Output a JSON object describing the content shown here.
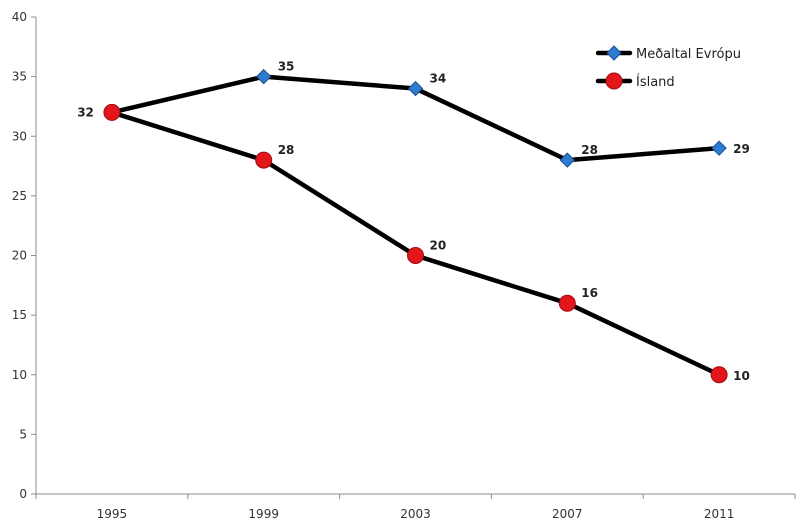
{
  "chart_data": {
    "type": "line",
    "categories": [
      "1995",
      "1999",
      "2003",
      "2007",
      "2011"
    ],
    "ylim": [
      0,
      40
    ],
    "yticks": [
      0,
      5,
      10,
      15,
      20,
      25,
      30,
      35,
      40
    ],
    "grid": false,
    "legend_position": "top-right",
    "series": [
      {
        "name": "Meðaltal Evrópu",
        "values": [
          32,
          35,
          34,
          28,
          29
        ],
        "marker": "diamond",
        "marker_color": "#2e7bd1",
        "line_color": "#000000"
      },
      {
        "name": "Ísland",
        "values": [
          32,
          28,
          20,
          16,
          10
        ],
        "marker": "circle",
        "marker_color": "#e3161b",
        "line_color": "#000000"
      }
    ]
  }
}
